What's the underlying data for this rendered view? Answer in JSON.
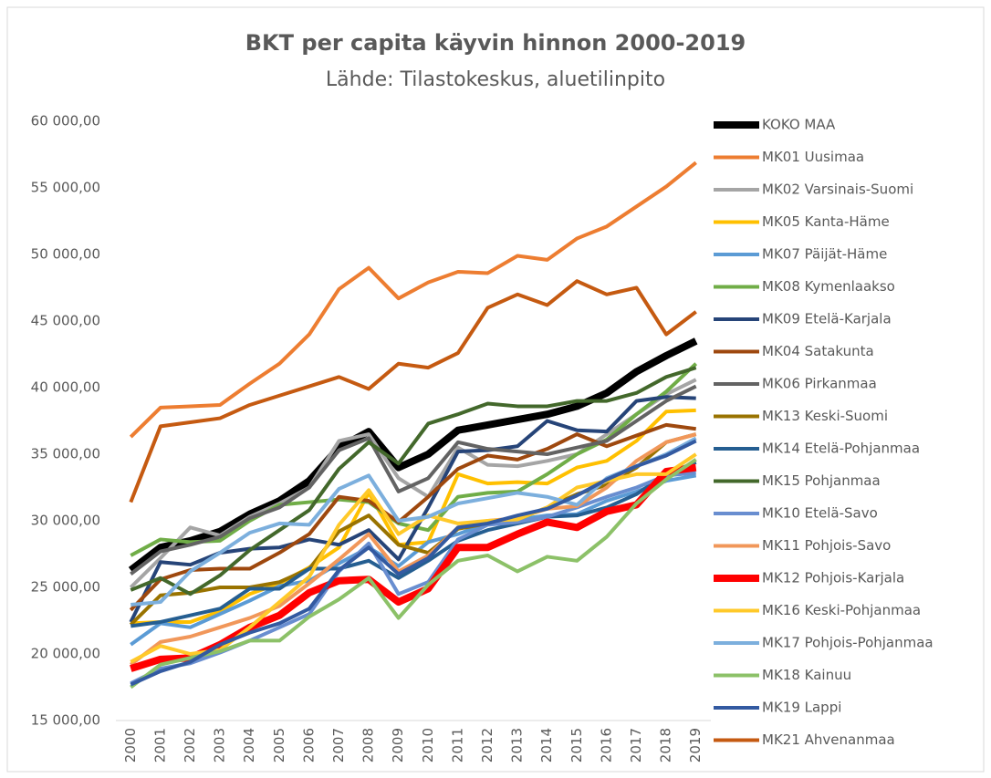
{
  "chart_data": {
    "type": "line",
    "title": "BKT per capita käyvin hinnon 2000-2019",
    "subtitle": "Lähde: Tilastokeskus, aluetilinpito",
    "categories": [
      "2000",
      "2001",
      "2002",
      "2003",
      "2004",
      "2005",
      "2006",
      "2007",
      "2008",
      "2009",
      "2010",
      "2011",
      "2012",
      "2013",
      "2014",
      "2015",
      "2016",
      "2017",
      "2018",
      "2019"
    ],
    "ylim": [
      15000,
      60000
    ],
    "yticks": [
      {
        "value": 15000,
        "label": "15 000,00"
      },
      {
        "value": 20000,
        "label": "20 000,00"
      },
      {
        "value": 25000,
        "label": "25 000,00"
      },
      {
        "value": 30000,
        "label": "30 000,00"
      },
      {
        "value": 35000,
        "label": "35 000,00"
      },
      {
        "value": 40000,
        "label": "40 000,00"
      },
      {
        "value": 45000,
        "label": "45 000,00"
      },
      {
        "value": 50000,
        "label": "50 000,00"
      },
      {
        "value": 55000,
        "label": "55 000,00"
      },
      {
        "value": 60000,
        "label": "60 000,00"
      }
    ],
    "grid": false,
    "legend": "right",
    "series": [
      {
        "name": "KOKO MAA",
        "color": "#000000",
        "line_width": 8,
        "values": [
          26300,
          28000,
          28500,
          29200,
          30500,
          31500,
          33000,
          35500,
          36700,
          34000,
          35000,
          36800,
          37200,
          37600,
          38000,
          38600,
          39600,
          41200,
          42400,
          43500
        ]
      },
      {
        "name": "MK01 Uusimaa",
        "color": "#ed7d31",
        "line_width": 4,
        "values": [
          36300,
          38500,
          38600,
          38700,
          40300,
          41800,
          44000,
          47400,
          49000,
          46700,
          47900,
          48700,
          48600,
          49900,
          49600,
          51200,
          52100,
          53600,
          55100,
          56900
        ]
      },
      {
        "name": "MK02 Varsinais-Suomi",
        "color": "#a5a5a5",
        "line_width": 4,
        "values": [
          25000,
          27200,
          29500,
          28900,
          30300,
          31300,
          32500,
          36000,
          36500,
          33200,
          31800,
          35500,
          34200,
          34100,
          34500,
          35000,
          36500,
          38000,
          39500,
          40600
        ]
      },
      {
        "name": "MK05 Kanta-Häme",
        "color": "#ffc000",
        "line_width": 4,
        "values": [
          22300,
          22400,
          22400,
          23200,
          24500,
          25300,
          26500,
          28000,
          32100,
          28200,
          28400,
          33500,
          32800,
          32900,
          32800,
          34000,
          34500,
          36000,
          38200,
          38300
        ]
      },
      {
        "name": "MK07 Päijät-Häme",
        "color": "#5b9bd5",
        "line_width": 4,
        "values": [
          20700,
          22300,
          22000,
          23000,
          24000,
          25100,
          25500,
          26800,
          28000,
          26600,
          28400,
          29000,
          29800,
          30100,
          30400,
          30500,
          31500,
          32200,
          33000,
          33400
        ]
      },
      {
        "name": "MK08 Kymenlaakso",
        "color": "#70ad47",
        "line_width": 4,
        "values": [
          27400,
          28600,
          28400,
          28500,
          30000,
          31200,
          31400,
          31600,
          31400,
          29800,
          29300,
          31800,
          32100,
          32200,
          33500,
          35000,
          36100,
          38000,
          39700,
          41800
        ]
      },
      {
        "name": "MK09 Etelä-Karjala",
        "color": "#264478",
        "line_width": 4,
        "values": [
          22400,
          26900,
          26700,
          27600,
          27900,
          28000,
          28600,
          28200,
          29300,
          27100,
          31000,
          35200,
          35300,
          35600,
          37500,
          36800,
          36700,
          39000,
          39300,
          39200
        ]
      },
      {
        "name": "MK04 Satakunta",
        "color": "#9e480e",
        "line_width": 4,
        "values": [
          23300,
          25600,
          26300,
          26400,
          26400,
          27600,
          29000,
          31800,
          31500,
          29900,
          31800,
          33900,
          34900,
          34600,
          35400,
          36500,
          35600,
          36400,
          37200,
          36900
        ]
      },
      {
        "name": "MK06 Pirkanmaa",
        "color": "#636363",
        "line_width": 4,
        "values": [
          26000,
          27700,
          28200,
          28800,
          30200,
          31000,
          32500,
          35300,
          36200,
          32200,
          33200,
          35900,
          35400,
          35200,
          35000,
          35500,
          36000,
          37500,
          39000,
          40100
        ]
      },
      {
        "name": "MK13 Keski-Suomi",
        "color": "#997300",
        "line_width": 4,
        "values": [
          22200,
          24400,
          24600,
          25000,
          25000,
          25400,
          26400,
          29200,
          30400,
          28200,
          27600,
          29400,
          29800,
          30100,
          31000,
          32000,
          32700,
          34000,
          35900,
          36500
        ]
      },
      {
        "name": "MK14 Etelä-Pohjanmaa",
        "color": "#255e91",
        "line_width": 4,
        "values": [
          22100,
          22400,
          22900,
          23400,
          24900,
          24900,
          26400,
          26400,
          27000,
          25700,
          27000,
          28500,
          29300,
          29800,
          30300,
          30400,
          31000,
          32000,
          33500,
          34400
        ]
      },
      {
        "name": "MK15 Pohjanmaa",
        "color": "#43682b",
        "line_width": 4,
        "values": [
          24800,
          25700,
          24500,
          25900,
          27800,
          29300,
          30800,
          33900,
          35900,
          34300,
          37300,
          38000,
          38800,
          38600,
          38600,
          39000,
          39000,
          39600,
          40800,
          41500
        ]
      },
      {
        "name": "MK10 Etelä-Savo",
        "color": "#698ed0",
        "line_width": 4,
        "values": [
          17800,
          18900,
          19300,
          20100,
          21000,
          22000,
          23000,
          26200,
          28300,
          24500,
          25400,
          28600,
          29700,
          29900,
          30300,
          31000,
          31800,
          32500,
          33400,
          33600
        ]
      },
      {
        "name": "MK11 Pohjois-Savo",
        "color": "#f1975a",
        "line_width": 4,
        "values": [
          19200,
          20900,
          21300,
          22000,
          22700,
          23600,
          25300,
          27100,
          29000,
          26200,
          27400,
          29500,
          30000,
          30200,
          30900,
          31100,
          32500,
          34500,
          35900,
          36500
        ]
      },
      {
        "name": "MK12 Pohjois-Karjala",
        "color": "#ff0000",
        "line_width": 8,
        "values": [
          18900,
          19600,
          19700,
          20700,
          22000,
          22900,
          24600,
          25500,
          25600,
          23900,
          24900,
          28000,
          28000,
          29000,
          29900,
          29500,
          30700,
          31200,
          33700,
          34000
        ]
      },
      {
        "name": "MK16 Keski-Pohjanmaa",
        "color": "#ffc929",
        "line_width": 4,
        "values": [
          19400,
          20600,
          20000,
          20300,
          22000,
          23900,
          25800,
          29700,
          32300,
          29000,
          30400,
          29800,
          30000,
          30100,
          31000,
          32500,
          33000,
          33500,
          33500,
          35000
        ]
      },
      {
        "name": "MK17 Pohjois-Pohjanmaa",
        "color": "#7cafdd",
        "line_width": 4,
        "values": [
          23700,
          23900,
          26200,
          27600,
          29100,
          29800,
          29700,
          32400,
          33400,
          30000,
          30300,
          31300,
          31700,
          32100,
          31800,
          31200,
          33200,
          34100,
          35000,
          36200
        ]
      },
      {
        "name": "MK18 Kainuu",
        "color": "#8cc168",
        "line_width": 4,
        "values": [
          17500,
          19200,
          19700,
          20200,
          21000,
          21000,
          22800,
          24100,
          25700,
          22700,
          25200,
          27000,
          27400,
          26200,
          27300,
          27000,
          28800,
          31300,
          33100,
          34600
        ]
      },
      {
        "name": "MK19 Lappi",
        "color": "#335aa1",
        "line_width": 4,
        "values": [
          17700,
          18700,
          19400,
          20700,
          21600,
          22300,
          23400,
          26300,
          28000,
          26000,
          27200,
          29500,
          29800,
          30400,
          30900,
          31900,
          33100,
          34100,
          34900,
          36000
        ]
      },
      {
        "name": "MK21 Ahvenanmaa",
        "color": "#c55a11",
        "line_width": 4,
        "values": [
          31400,
          37100,
          37400,
          37700,
          38700,
          39400,
          40100,
          40800,
          39900,
          41800,
          41500,
          42600,
          46000,
          47000,
          46200,
          48000,
          47000,
          47500,
          44000,
          45700
        ]
      }
    ]
  }
}
